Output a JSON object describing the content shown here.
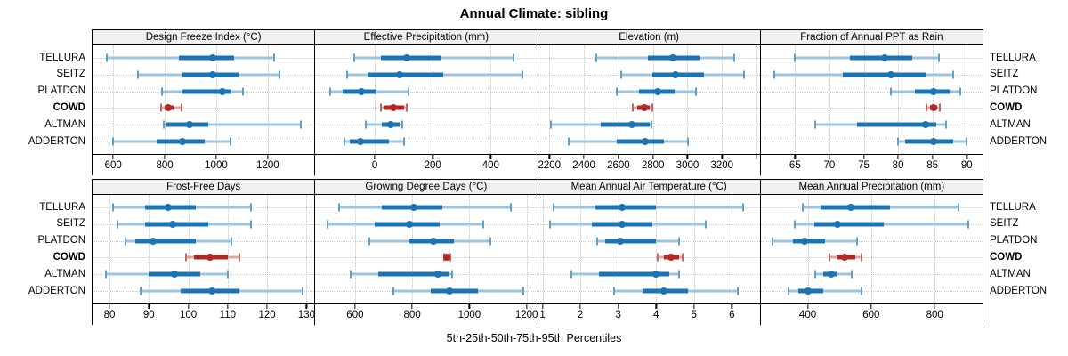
{
  "title": "Annual Climate: sibling",
  "footer": "5th-25th-50th-75th-95th Percentiles",
  "colors": {
    "blue": "#1b74b5",
    "blue_light": "#9cc4e0",
    "blue_mid": "#5f9fca",
    "red": "#b32724",
    "red_light": "#dba8a6",
    "red_mid": "#c96360",
    "grid": "#c6c6c6",
    "strip_bg": "#f0f0f0",
    "border": "#000000"
  },
  "stations": [
    {
      "name": "TELLURA",
      "highlight": false
    },
    {
      "name": "SEITZ",
      "highlight": false
    },
    {
      "name": "PLATDON",
      "highlight": false
    },
    {
      "name": "COWD",
      "highlight": true
    },
    {
      "name": "ALTMAN",
      "highlight": false
    },
    {
      "name": "ADDERTON",
      "highlight": false
    }
  ],
  "highlight_station": "COWD",
  "chart_data": {
    "type": "scatter",
    "subtype": "percentile-range-dotplot",
    "percentiles": [
      5,
      25,
      50,
      75,
      95
    ],
    "legend_position": "none",
    "grid": true,
    "layout": {
      "rows": 2,
      "cols": 4
    },
    "panels": [
      {
        "title": "Design Freeze Index (°C)",
        "xlim": [
          520,
          1381
        ],
        "ticks": [
          {
            "v": 600,
            "label": "600"
          },
          {
            "v": 800,
            "label": "800"
          },
          {
            "v": 1000,
            "label": "1000"
          },
          {
            "v": 1200,
            "label": "1200"
          }
        ],
        "series": {
          "TELLURA": [
            575,
            855,
            985,
            1070,
            1225
          ],
          "SEITZ": [
            695,
            870,
            985,
            1085,
            1245
          ],
          "PLATDON": [
            790,
            870,
            1025,
            1060,
            1105
          ],
          "COWD": [
            785,
            800,
            815,
            835,
            865
          ],
          "ALTMAN": [
            795,
            805,
            895,
            970,
            1330
          ],
          "ADDERTON": [
            600,
            770,
            870,
            955,
            1055
          ]
        }
      },
      {
        "title": "Effective Precipitation (mm)",
        "xlim": [
          -205,
          560
        ],
        "ticks": [
          {
            "v": 0,
            "label": "0"
          },
          {
            "v": 200,
            "label": "200"
          },
          {
            "v": 400,
            "label": "400"
          }
        ],
        "series": {
          "TELLURA": [
            -70,
            20,
            110,
            230,
            480
          ],
          "SEITZ": [
            -95,
            -25,
            85,
            235,
            510
          ],
          "PLATDON": [
            -155,
            -110,
            -45,
            5,
            115
          ],
          "COWD": [
            20,
            35,
            65,
            100,
            110
          ],
          "ALTMAN": [
            -30,
            25,
            55,
            85,
            95
          ],
          "ADDERTON": [
            -105,
            -85,
            -50,
            50,
            100
          ]
        }
      },
      {
        "title": "Elevation (m)",
        "xlim": [
          2134,
          3419
        ],
        "ticks": [
          {
            "v": 2200,
            "label": "2200"
          },
          {
            "v": 2400,
            "label": "2400"
          },
          {
            "v": 2600,
            "label": "2600"
          },
          {
            "v": 2800,
            "label": "2800"
          },
          {
            "v": 3000,
            "label": "3000"
          },
          {
            "v": 3200,
            "label": "3200"
          },
          {
            "v": 3400,
            "label": ""
          }
        ],
        "series": {
          "TELLURA": [
            2470,
            2770,
            2915,
            3070,
            3270
          ],
          "SEITZ": [
            2615,
            2795,
            2930,
            3095,
            3330
          ],
          "PLATDON": [
            2590,
            2720,
            2825,
            2925,
            3050
          ],
          "COWD": [
            2685,
            2710,
            2750,
            2780,
            2795
          ],
          "ALTMAN": [
            2210,
            2500,
            2680,
            2780,
            2790
          ],
          "ADDERTON": [
            2310,
            2590,
            2755,
            2865,
            3005
          ]
        }
      },
      {
        "title": "Fraction of Annual PPT as Rain",
        "xlim": [
          60,
          92.3
        ],
        "ticks": [
          {
            "v": 65,
            "label": "65"
          },
          {
            "v": 70,
            "label": "70"
          },
          {
            "v": 75,
            "label": "75"
          },
          {
            "v": 80,
            "label": "80"
          },
          {
            "v": 85,
            "label": "85"
          },
          {
            "v": 90,
            "label": "90"
          }
        ],
        "series": {
          "TELLURA": [
            65,
            73,
            78,
            82,
            86
          ],
          "SEITZ": [
            62,
            72,
            79,
            84,
            88
          ],
          "PLATDON": [
            79,
            82.5,
            85.2,
            87.5,
            89
          ],
          "COWD": [
            84.2,
            84.7,
            85.2,
            85.7,
            86.1
          ],
          "ALTMAN": [
            68,
            74,
            84,
            85.5,
            87
          ],
          "ADDERTON": [
            80,
            81,
            85.2,
            88,
            90
          ]
        }
      },
      {
        "title": "Frost-Free Days",
        "xlim": [
          75.7,
          132
        ],
        "ticks": [
          {
            "v": 80,
            "label": "80"
          },
          {
            "v": 90,
            "label": "90"
          },
          {
            "v": 100,
            "label": "100"
          },
          {
            "v": 110,
            "label": "110"
          },
          {
            "v": 120,
            "label": "120"
          },
          {
            "v": 130,
            "label": "130"
          }
        ],
        "series": {
          "TELLURA": [
            81,
            89,
            95,
            102,
            116
          ],
          "SEITZ": [
            82,
            89,
            96,
            105,
            116
          ],
          "PLATDON": [
            84,
            86.5,
            91,
            102,
            111
          ],
          "COWD": [
            99.5,
            101.5,
            105.5,
            110,
            113
          ],
          "ALTMAN": [
            79,
            90,
            96.5,
            103,
            110
          ],
          "ADDERTON": [
            88,
            98,
            106,
            113,
            129
          ]
        }
      },
      {
        "title": "Growing Degree Days (°C)",
        "xlim": [
          461,
          1237
        ],
        "ticks": [
          {
            "v": 600,
            "label": "600"
          },
          {
            "v": 800,
            "label": "800"
          },
          {
            "v": 1000,
            "label": "1000"
          },
          {
            "v": 1200,
            "label": "1200"
          }
        ],
        "series": {
          "TELLURA": [
            545,
            695,
            805,
            905,
            1145
          ],
          "SEITZ": [
            505,
            670,
            790,
            895,
            1050
          ],
          "PLATDON": [
            650,
            790,
            875,
            945,
            1075
          ],
          "COWD": [
            913,
            918,
            922,
            927,
            932
          ],
          "ALTMAN": [
            585,
            680,
            890,
            930,
            940
          ],
          "ADDERTON": [
            735,
            865,
            930,
            1030,
            1190
          ]
        }
      },
      {
        "title": "Mean Annual Air Temperature (°C)",
        "xlim": [
          0.88,
          6.74
        ],
        "ticks": [
          {
            "v": 1,
            "label": "1"
          },
          {
            "v": 2,
            "label": "2"
          },
          {
            "v": 3,
            "label": "3"
          },
          {
            "v": 4,
            "label": "4"
          },
          {
            "v": 5,
            "label": "5"
          },
          {
            "v": 6,
            "label": "6"
          }
        ],
        "series": {
          "TELLURA": [
            1.3,
            2.4,
            3.1,
            4.0,
            6.3
          ],
          "SEITZ": [
            1.2,
            2.3,
            3.1,
            3.9,
            5.3
          ],
          "PLATDON": [
            2.45,
            2.65,
            3.05,
            4.0,
            4.6
          ],
          "COWD": [
            4.05,
            4.2,
            4.4,
            4.6,
            4.7
          ],
          "ALTMAN": [
            1.75,
            2.5,
            4.0,
            4.35,
            4.6
          ],
          "ADDERTON": [
            2.9,
            3.65,
            4.2,
            4.85,
            6.15
          ]
        }
      },
      {
        "title": "Mean Annual Precipitation (mm)",
        "xlim": [
          252,
          951
        ],
        "ticks": [
          {
            "v": 400,
            "label": "400"
          },
          {
            "v": 600,
            "label": "600"
          },
          {
            "v": 800,
            "label": "800"
          }
        ],
        "series": {
          "TELLURA": [
            385,
            440,
            535,
            660,
            875
          ],
          "SEITZ": [
            360,
            420,
            495,
            640,
            905
          ],
          "PLATDON": [
            290,
            355,
            390,
            455,
            555
          ],
          "COWD": [
            470,
            490,
            515,
            550,
            570
          ],
          "ALTMAN": [
            425,
            450,
            475,
            495,
            540
          ],
          "ADDERTON": [
            340,
            370,
            400,
            450,
            570
          ]
        }
      }
    ]
  }
}
